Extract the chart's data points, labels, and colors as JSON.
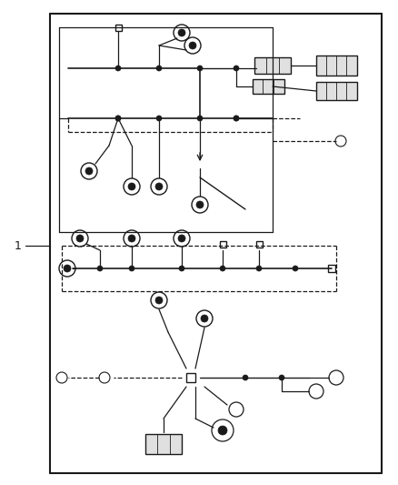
{
  "bg": "#ffffff",
  "lc": "#1a1a1a",
  "dc": "#555555",
  "fig_w": 4.38,
  "fig_h": 5.33,
  "dpi": 100
}
